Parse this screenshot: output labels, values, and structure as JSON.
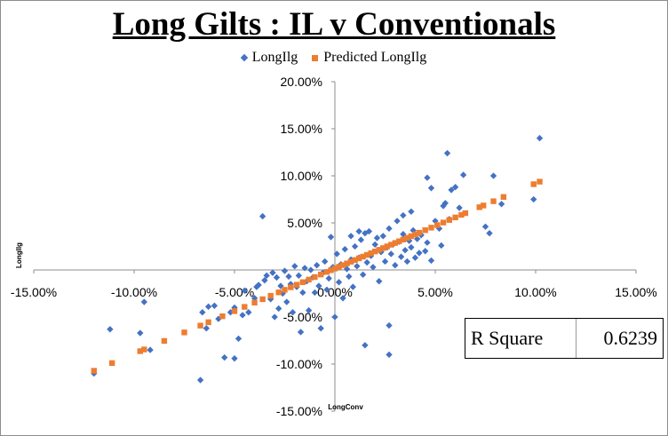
{
  "chart_data": {
    "type": "scatter",
    "title": "Long Gilts : IL v Conventionals",
    "xlabel": "LongConv",
    "ylabel": "LongIlg",
    "xlim": [
      -0.15,
      0.15
    ],
    "ylim": [
      -0.15,
      0.2
    ],
    "x_ticks": [
      -0.15,
      -0.1,
      -0.05,
      0.0,
      0.05,
      0.1,
      0.15
    ],
    "x_tick_labels": [
      "-15.00%",
      "-10.00%",
      "-5.00%",
      "0.00%",
      "5.00%",
      "10.00%",
      "15.00%"
    ],
    "y_ticks": [
      -0.15,
      -0.1,
      -0.05,
      0.0,
      0.05,
      0.1,
      0.15,
      0.2
    ],
    "y_tick_labels": [
      "-15.00%",
      "-10.00%",
      "-5.00%",
      "0.00%",
      "5.00%",
      "10.00%",
      "15.00%",
      "20.00%"
    ],
    "legend_position": "top-center",
    "series": [
      {
        "name": "LongIlg",
        "marker": "diamond",
        "color": "#4472c4",
        "points": [
          [
            -0.12,
            -0.11
          ],
          [
            -0.112,
            -0.063
          ],
          [
            -0.095,
            -0.034
          ],
          [
            -0.097,
            -0.067
          ],
          [
            -0.092,
            -0.085
          ],
          [
            -0.067,
            -0.117
          ],
          [
            -0.066,
            -0.045
          ],
          [
            -0.064,
            -0.062
          ],
          [
            -0.063,
            -0.039
          ],
          [
            -0.06,
            -0.038
          ],
          [
            -0.058,
            -0.052
          ],
          [
            -0.055,
            -0.093
          ],
          [
            -0.052,
            -0.045
          ],
          [
            -0.05,
            -0.04
          ],
          [
            -0.05,
            -0.094
          ],
          [
            -0.048,
            -0.073
          ],
          [
            -0.046,
            -0.048
          ],
          [
            -0.045,
            -0.022
          ],
          [
            -0.043,
            -0.045
          ],
          [
            -0.04,
            -0.03
          ],
          [
            -0.039,
            -0.018
          ],
          [
            -0.038,
            -0.016
          ],
          [
            -0.036,
            0.057
          ],
          [
            -0.035,
            -0.011
          ],
          [
            -0.034,
            -0.006
          ],
          [
            -0.032,
            -0.031
          ],
          [
            -0.031,
            -0.003
          ],
          [
            -0.03,
            -0.05
          ],
          [
            -0.029,
            -0.008
          ],
          [
            -0.028,
            -0.041
          ],
          [
            -0.027,
            -0.017
          ],
          [
            -0.026,
            -0.025
          ],
          [
            -0.025,
            -0.001
          ],
          [
            -0.024,
            -0.034
          ],
          [
            -0.023,
            -0.007
          ],
          [
            -0.022,
            -0.015
          ],
          [
            -0.021,
            -0.045
          ],
          [
            -0.02,
            0.004
          ],
          [
            -0.019,
            -0.018
          ],
          [
            -0.018,
            -0.006
          ],
          [
            -0.017,
            -0.066
          ],
          [
            -0.016,
            -0.024
          ],
          [
            -0.015,
            0.002
          ],
          [
            -0.014,
            -0.012
          ],
          [
            -0.013,
            -0.043
          ],
          [
            -0.012,
            0.0
          ],
          [
            -0.011,
            -0.008
          ],
          [
            -0.01,
            -0.024
          ],
          [
            -0.009,
            0.005
          ],
          [
            -0.008,
            -0.017
          ],
          [
            -0.007,
            -0.062
          ],
          [
            -0.006,
            -0.003
          ],
          [
            -0.005,
            0.009
          ],
          [
            -0.004,
            -0.021
          ],
          [
            -0.003,
            -0.009
          ],
          [
            -0.002,
            0.035
          ],
          [
            -0.001,
            0.003
          ],
          [
            0.0,
            -0.05
          ],
          [
            0.001,
            0.017
          ],
          [
            0.002,
            -0.013
          ],
          [
            0.003,
            0.006
          ],
          [
            0.004,
            -0.03
          ],
          [
            0.005,
            0.022
          ],
          [
            0.006,
            0.001
          ],
          [
            0.007,
            -0.007
          ],
          [
            0.008,
            0.011
          ],
          [
            0.009,
            -0.018
          ],
          [
            0.01,
            0.025
          ],
          [
            0.011,
            0.004
          ],
          [
            0.012,
            0.013
          ],
          [
            0.013,
            0.032
          ],
          [
            0.014,
            -0.005
          ],
          [
            0.015,
            0.039
          ],
          [
            0.016,
            0.008
          ],
          [
            0.017,
            0.041
          ],
          [
            0.018,
            0.015
          ],
          [
            0.019,
            0.003
          ],
          [
            0.02,
            0.027
          ],
          [
            0.021,
            0.034
          ],
          [
            0.022,
            -0.012
          ],
          [
            0.023,
            0.019
          ],
          [
            0.024,
            0.036
          ],
          [
            0.025,
            0.009
          ],
          [
            0.026,
            0.024
          ],
          [
            0.027,
            0.044
          ],
          [
            0.028,
            0.017
          ],
          [
            0.029,
            0.027
          ],
          [
            0.03,
            0.005
          ],
          [
            0.031,
            0.052
          ],
          [
            0.032,
            0.03
          ],
          [
            0.033,
            0.014
          ],
          [
            0.034,
            0.038
          ],
          [
            0.035,
            0.021
          ],
          [
            0.036,
            0.009
          ],
          [
            0.037,
            0.031
          ],
          [
            0.038,
            0.024
          ],
          [
            0.039,
            0.042
          ],
          [
            0.04,
            0.013
          ],
          [
            0.041,
            0.033
          ],
          [
            0.042,
            0.018
          ],
          [
            0.043,
            0.037
          ],
          [
            0.045,
            0.02
          ],
          [
            0.046,
            0.029
          ],
          [
            0.048,
            0.01
          ],
          [
            0.05,
            0.052
          ],
          [
            0.052,
            0.044
          ],
          [
            0.053,
            0.026
          ],
          [
            0.054,
            0.068
          ],
          [
            0.055,
            0.071
          ],
          [
            0.056,
            0.124
          ],
          [
            0.057,
            0.054
          ],
          [
            0.058,
            0.085
          ],
          [
            0.06,
            0.088
          ],
          [
            0.062,
            0.066
          ],
          [
            0.064,
            0.101
          ],
          [
            0.046,
            0.098
          ],
          [
            0.048,
            0.087
          ],
          [
            0.027,
            -0.059
          ],
          [
            0.015,
            -0.08
          ],
          [
            0.027,
            -0.09
          ],
          [
            0.079,
            0.1
          ],
          [
            0.075,
            0.046
          ],
          [
            0.077,
            0.039
          ],
          [
            0.083,
            0.07
          ],
          [
            0.099,
            0.075
          ],
          [
            0.102,
            0.14
          ],
          [
            0.038,
            0.062
          ],
          [
            0.034,
            0.058
          ],
          [
            0.012,
            0.041
          ],
          [
            0.008,
            0.036
          ]
        ]
      },
      {
        "name": "Predicted LongIlg",
        "marker": "square",
        "color": "#ed7d31",
        "slope": 0.905,
        "intercept": 0.0015,
        "x": [
          -0.12,
          -0.111,
          -0.097,
          -0.095,
          -0.085,
          -0.075,
          -0.067,
          -0.063,
          -0.056,
          -0.05,
          -0.045,
          -0.04,
          -0.036,
          -0.032,
          -0.028,
          -0.025,
          -0.022,
          -0.019,
          -0.016,
          -0.013,
          -0.01,
          -0.007,
          -0.004,
          -0.002,
          0.0,
          0.002,
          0.004,
          0.006,
          0.008,
          0.01,
          0.012,
          0.014,
          0.016,
          0.018,
          0.02,
          0.022,
          0.024,
          0.026,
          0.028,
          0.03,
          0.032,
          0.034,
          0.036,
          0.038,
          0.04,
          0.042,
          0.045,
          0.048,
          0.051,
          0.054,
          0.057,
          0.06,
          0.063,
          0.065,
          0.072,
          0.074,
          0.079,
          0.084,
          0.099,
          0.102
        ]
      }
    ]
  },
  "r_square": {
    "label": "R Square",
    "value": "0.6239"
  }
}
